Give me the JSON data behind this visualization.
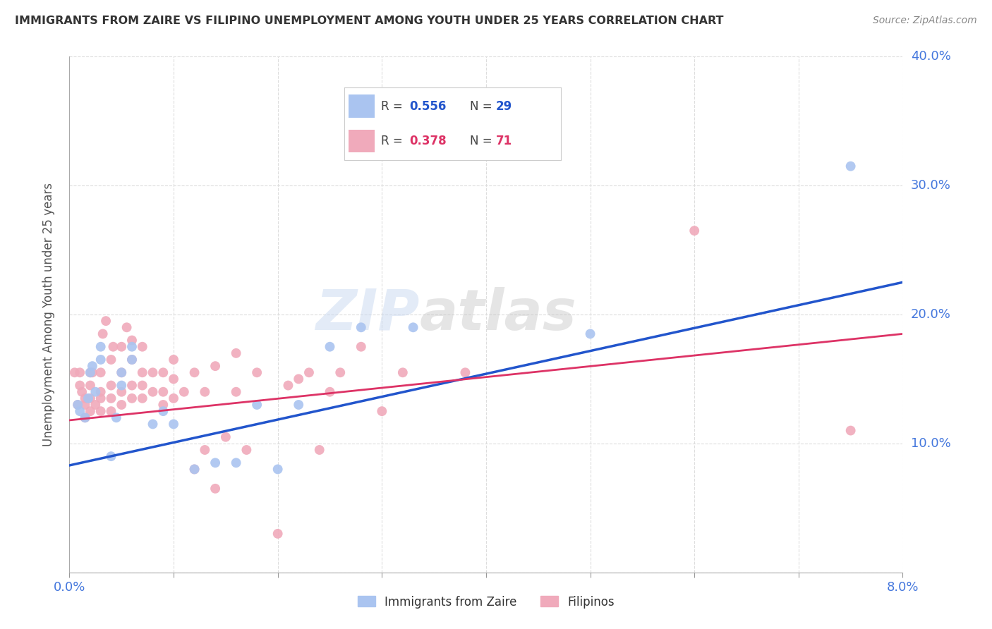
{
  "title": "IMMIGRANTS FROM ZAIRE VS FILIPINO UNEMPLOYMENT AMONG YOUTH UNDER 25 YEARS CORRELATION CHART",
  "source": "Source: ZipAtlas.com",
  "ylabel": "Unemployment Among Youth under 25 years",
  "xlim": [
    0.0,
    0.08
  ],
  "ylim": [
    0.0,
    0.4
  ],
  "xticks": [
    0.0,
    0.01,
    0.02,
    0.03,
    0.04,
    0.05,
    0.06,
    0.07,
    0.08
  ],
  "yticks": [
    0.0,
    0.1,
    0.2,
    0.3,
    0.4
  ],
  "xtick_labels": [
    "0.0%",
    "",
    "",
    "",
    "",
    "",
    "",
    "",
    "8.0%"
  ],
  "ytick_labels": [
    "",
    "10.0%",
    "20.0%",
    "30.0%",
    "40.0%"
  ],
  "legend_blue_r": "0.556",
  "legend_blue_n": "29",
  "legend_pink_r": "0.378",
  "legend_pink_n": "71",
  "legend_label_blue": "Immigrants from Zaire",
  "legend_label_pink": "Filipinos",
  "blue_color": "#aac4f0",
  "pink_color": "#f0aabb",
  "trendline_blue_color": "#2255cc",
  "trendline_pink_color": "#dd3366",
  "blue_scatter": [
    [
      0.0008,
      0.13
    ],
    [
      0.001,
      0.125
    ],
    [
      0.0015,
      0.12
    ],
    [
      0.0018,
      0.135
    ],
    [
      0.002,
      0.155
    ],
    [
      0.0022,
      0.16
    ],
    [
      0.0025,
      0.14
    ],
    [
      0.003,
      0.175
    ],
    [
      0.003,
      0.165
    ],
    [
      0.004,
      0.09
    ],
    [
      0.0045,
      0.12
    ],
    [
      0.005,
      0.155
    ],
    [
      0.005,
      0.145
    ],
    [
      0.006,
      0.175
    ],
    [
      0.006,
      0.165
    ],
    [
      0.008,
      0.115
    ],
    [
      0.009,
      0.125
    ],
    [
      0.01,
      0.115
    ],
    [
      0.012,
      0.08
    ],
    [
      0.014,
      0.085
    ],
    [
      0.016,
      0.085
    ],
    [
      0.018,
      0.13
    ],
    [
      0.02,
      0.08
    ],
    [
      0.022,
      0.13
    ],
    [
      0.025,
      0.175
    ],
    [
      0.028,
      0.19
    ],
    [
      0.033,
      0.19
    ],
    [
      0.05,
      0.185
    ],
    [
      0.075,
      0.315
    ]
  ],
  "pink_scatter": [
    [
      0.0005,
      0.155
    ],
    [
      0.0008,
      0.13
    ],
    [
      0.001,
      0.145
    ],
    [
      0.001,
      0.155
    ],
    [
      0.0012,
      0.14
    ],
    [
      0.0015,
      0.12
    ],
    [
      0.0015,
      0.13
    ],
    [
      0.0015,
      0.135
    ],
    [
      0.002,
      0.125
    ],
    [
      0.002,
      0.135
    ],
    [
      0.002,
      0.145
    ],
    [
      0.002,
      0.155
    ],
    [
      0.0022,
      0.155
    ],
    [
      0.0025,
      0.13
    ],
    [
      0.003,
      0.125
    ],
    [
      0.003,
      0.135
    ],
    [
      0.003,
      0.14
    ],
    [
      0.003,
      0.155
    ],
    [
      0.0032,
      0.185
    ],
    [
      0.0035,
      0.195
    ],
    [
      0.004,
      0.125
    ],
    [
      0.004,
      0.135
    ],
    [
      0.004,
      0.145
    ],
    [
      0.004,
      0.165
    ],
    [
      0.0042,
      0.175
    ],
    [
      0.005,
      0.13
    ],
    [
      0.005,
      0.14
    ],
    [
      0.005,
      0.155
    ],
    [
      0.005,
      0.175
    ],
    [
      0.0055,
      0.19
    ],
    [
      0.006,
      0.135
    ],
    [
      0.006,
      0.145
    ],
    [
      0.006,
      0.165
    ],
    [
      0.006,
      0.18
    ],
    [
      0.007,
      0.135
    ],
    [
      0.007,
      0.145
    ],
    [
      0.007,
      0.155
    ],
    [
      0.007,
      0.175
    ],
    [
      0.008,
      0.14
    ],
    [
      0.008,
      0.155
    ],
    [
      0.009,
      0.13
    ],
    [
      0.009,
      0.14
    ],
    [
      0.009,
      0.155
    ],
    [
      0.01,
      0.135
    ],
    [
      0.01,
      0.15
    ],
    [
      0.01,
      0.165
    ],
    [
      0.011,
      0.14
    ],
    [
      0.012,
      0.08
    ],
    [
      0.012,
      0.155
    ],
    [
      0.013,
      0.095
    ],
    [
      0.013,
      0.14
    ],
    [
      0.014,
      0.065
    ],
    [
      0.014,
      0.16
    ],
    [
      0.015,
      0.105
    ],
    [
      0.016,
      0.14
    ],
    [
      0.016,
      0.17
    ],
    [
      0.017,
      0.095
    ],
    [
      0.018,
      0.155
    ],
    [
      0.02,
      0.03
    ],
    [
      0.021,
      0.145
    ],
    [
      0.022,
      0.15
    ],
    [
      0.023,
      0.155
    ],
    [
      0.024,
      0.095
    ],
    [
      0.025,
      0.14
    ],
    [
      0.026,
      0.155
    ],
    [
      0.028,
      0.175
    ],
    [
      0.03,
      0.125
    ],
    [
      0.032,
      0.155
    ],
    [
      0.038,
      0.155
    ],
    [
      0.06,
      0.265
    ],
    [
      0.075,
      0.11
    ]
  ],
  "blue_trendline_x": [
    0.0,
    0.08
  ],
  "blue_trendline_y": [
    0.083,
    0.225
  ],
  "pink_trendline_x": [
    0.0,
    0.08
  ],
  "pink_trendline_y": [
    0.118,
    0.185
  ],
  "background_color": "#ffffff",
  "grid_color": "#dddddd",
  "axis_label_color": "#4477dd",
  "title_color": "#333333",
  "watermark_text": "ZIP",
  "watermark_text2": "atlas"
}
